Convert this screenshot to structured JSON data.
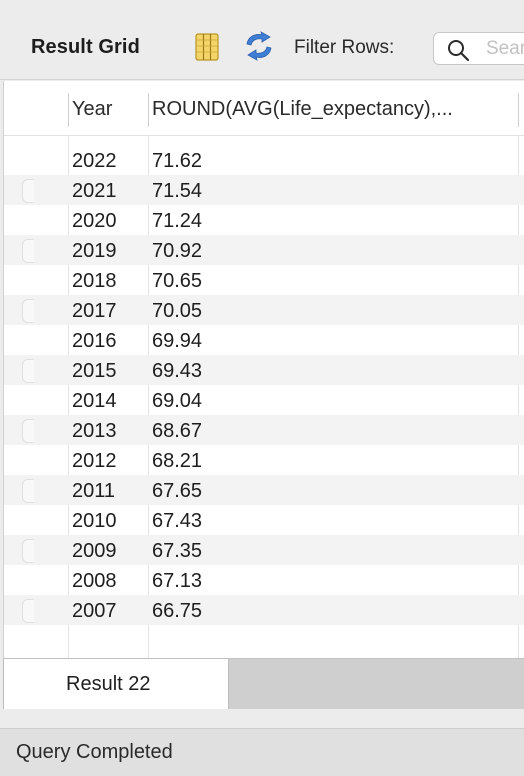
{
  "toolbar": {
    "title": "Result Grid",
    "grid_icon": "grid-columns-icon",
    "refresh_icon": "refresh-icon",
    "filter_label": "Filter Rows:",
    "search_placeholder": "Search",
    "search_icon": "search-icon"
  },
  "grid": {
    "columns": [
      "Year",
      "ROUND(AVG(Life_expectancy),..."
    ],
    "rows": [
      {
        "year": "2022",
        "value": "71.62"
      },
      {
        "year": "2021",
        "value": "71.54"
      },
      {
        "year": "2020",
        "value": "71.24"
      },
      {
        "year": "2019",
        "value": "70.92"
      },
      {
        "year": "2018",
        "value": "70.65"
      },
      {
        "year": "2017",
        "value": "70.05"
      },
      {
        "year": "2016",
        "value": "69.94"
      },
      {
        "year": "2015",
        "value": "69.43"
      },
      {
        "year": "2014",
        "value": "69.04"
      },
      {
        "year": "2013",
        "value": "68.67"
      },
      {
        "year": "2012",
        "value": "68.21"
      },
      {
        "year": "2011",
        "value": "67.65"
      },
      {
        "year": "2010",
        "value": "67.43"
      },
      {
        "year": "2009",
        "value": "67.35"
      },
      {
        "year": "2008",
        "value": "67.13"
      },
      {
        "year": "2007",
        "value": "66.75"
      }
    ]
  },
  "tabs": [
    {
      "label": "Result 22"
    }
  ],
  "status": {
    "text": "Query Completed"
  }
}
